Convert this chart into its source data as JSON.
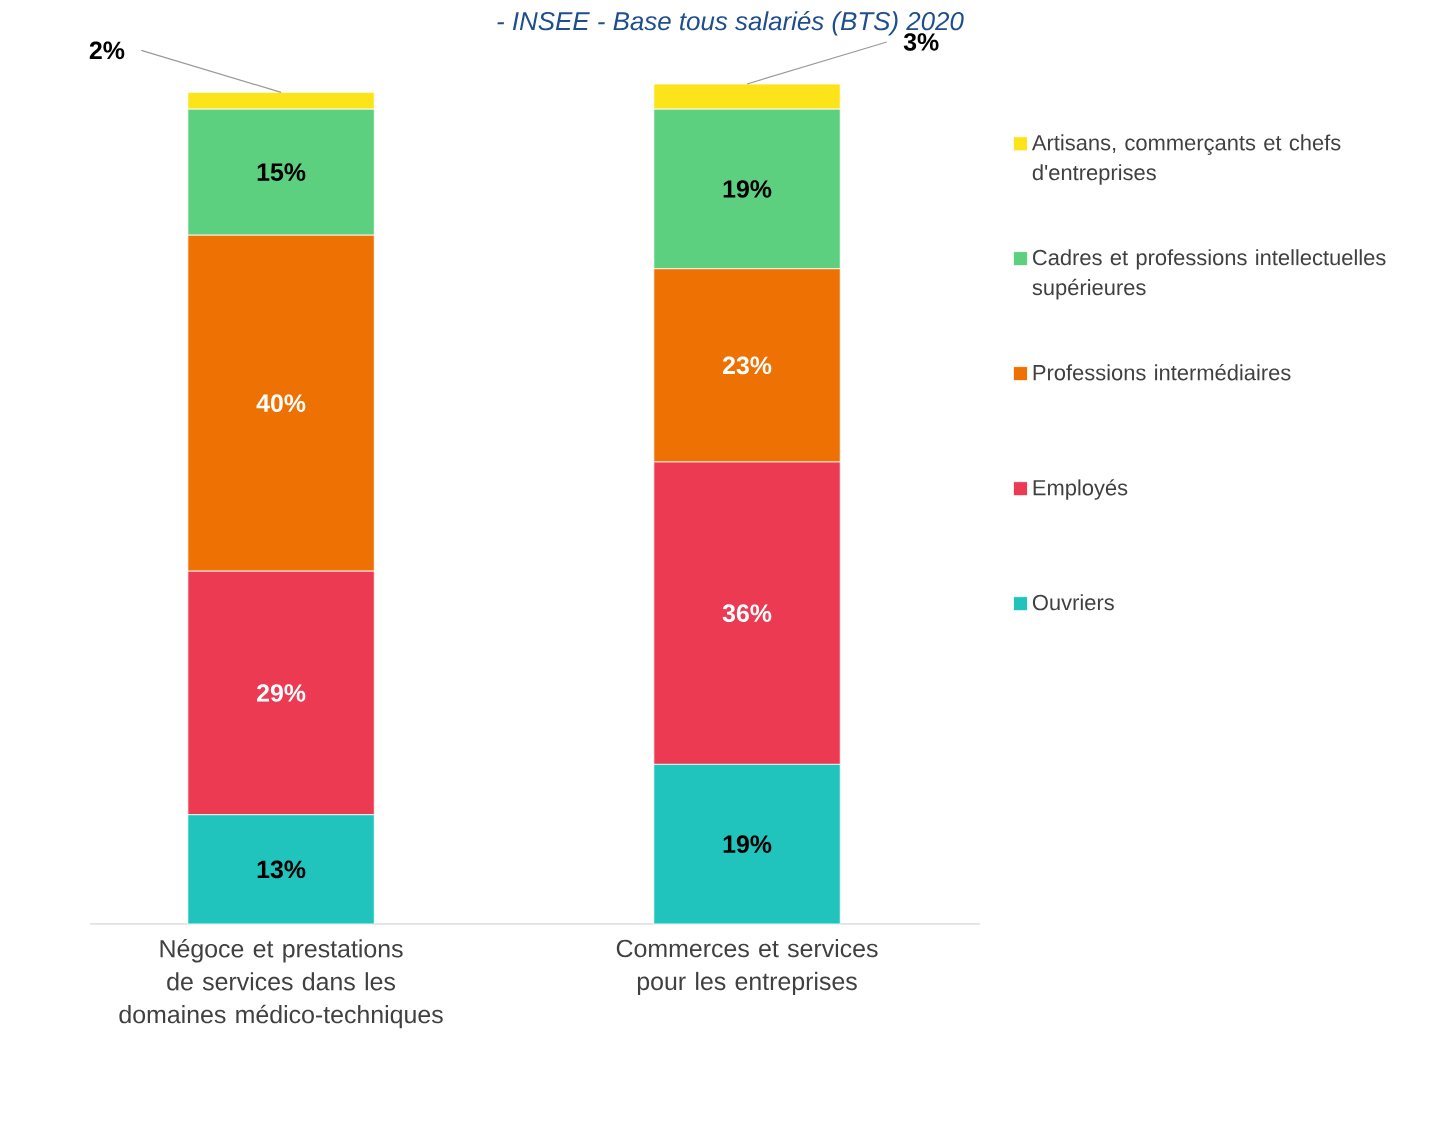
{
  "chart_data": {
    "type": "bar",
    "stacked": true,
    "title": "- INSEE - Base tous salariés (BTS) 2020",
    "legend": "right",
    "categories": [
      "Négoce et prestations de services dans les domaines médico-techniques",
      "Commerces et services pour les entreprises"
    ],
    "series": [
      {
        "name": "Ouvriers",
        "color": "#20c4bc",
        "values": [
          13,
          19
        ],
        "value_labels": [
          "13%",
          "19%"
        ]
      },
      {
        "name": "Employés",
        "color": "#ec3a52",
        "values": [
          29,
          36
        ],
        "value_labels": [
          "29%",
          "36%"
        ]
      },
      {
        "name": "Professions intermédiaires",
        "color": "#ee7203",
        "values": [
          40,
          23
        ],
        "value_labels": [
          "40%",
          "23%"
        ]
      },
      {
        "name": "Cadres et professions intellectuelles supérieures",
        "color": "#5dd07f",
        "values": [
          15,
          19
        ],
        "value_labels": [
          "15%",
          "19%"
        ]
      },
      {
        "name": "Artisans, commerçants et chefs d'entreprises",
        "color": "#fde41a",
        "values": [
          2,
          3
        ],
        "value_labels": [
          "2%",
          "3%"
        ]
      }
    ]
  }
}
